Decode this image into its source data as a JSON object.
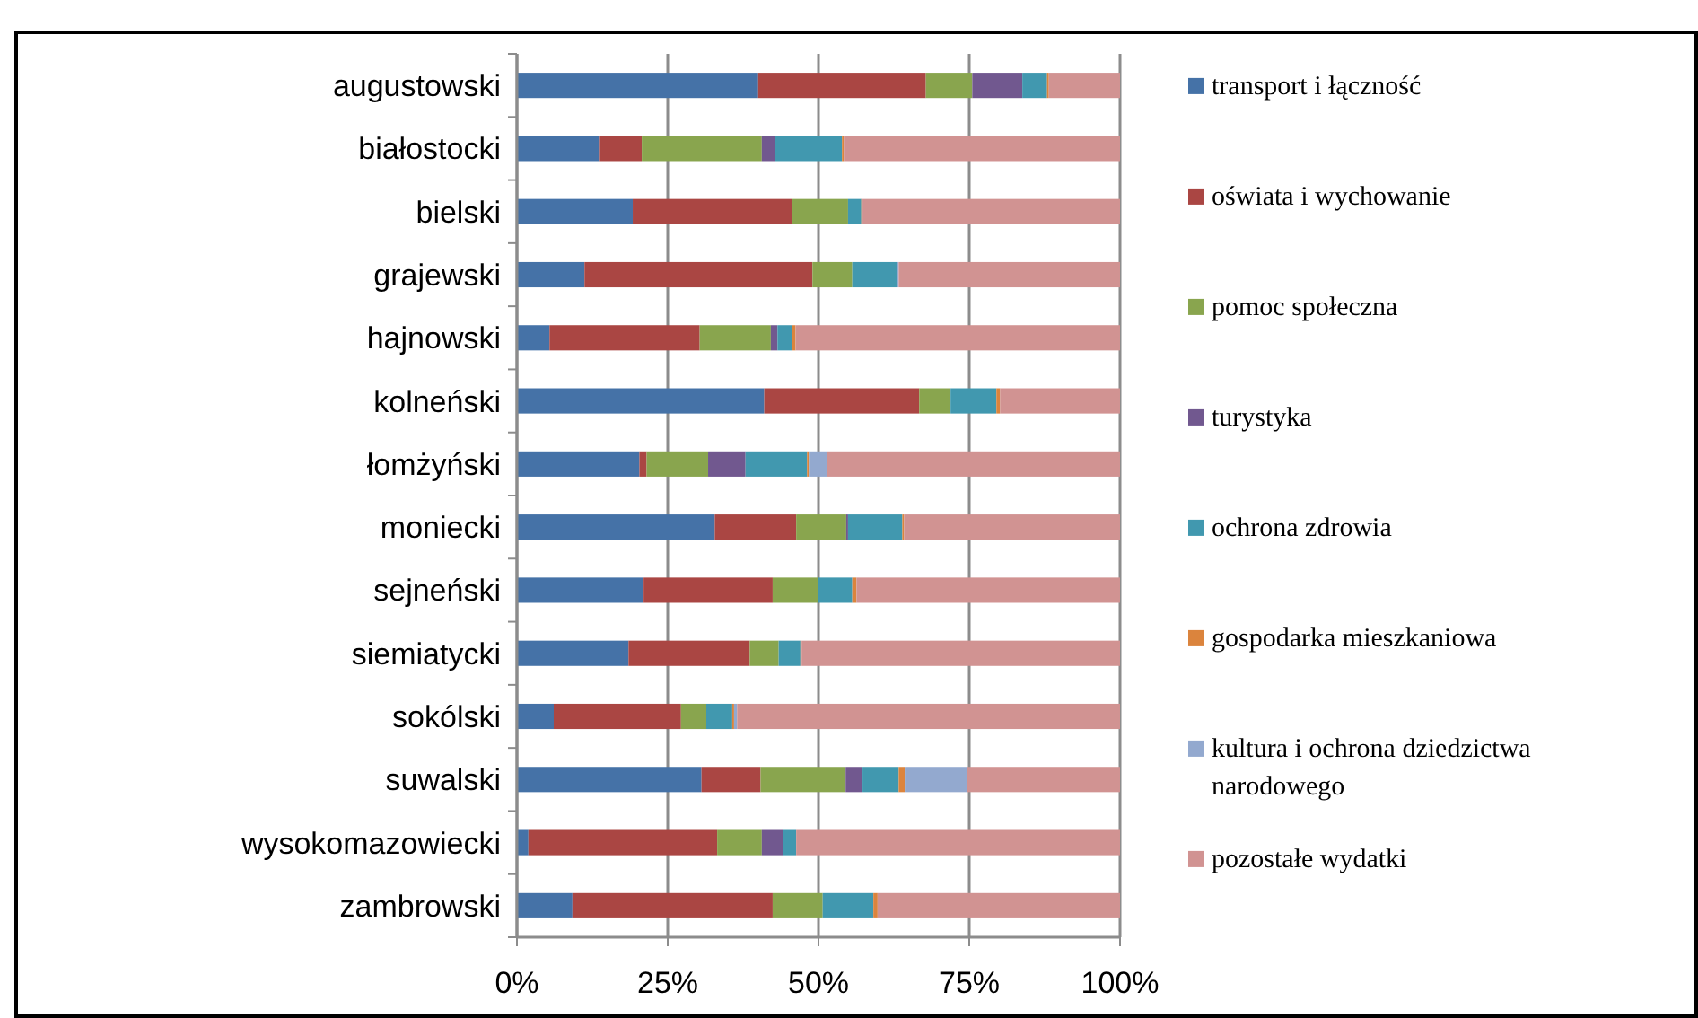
{
  "chart_data": {
    "type": "bar",
    "orientation": "horizontal",
    "stacked": true,
    "grid": "x",
    "legend": "right",
    "categories": [
      "augustowski",
      "białostocki",
      "bielski",
      "grajewski",
      "hajnowski",
      "kolneński",
      "łomżyński",
      "moniecki",
      "sejneński",
      "siemiatycki",
      "sokólski",
      "suwalski",
      "wysokomazowiecki",
      "zambrowski"
    ],
    "xlim": [
      0,
      100
    ],
    "xticks": [
      {
        "value": 0,
        "label": "0%"
      },
      {
        "value": 25,
        "label": "25%"
      },
      {
        "value": 50,
        "label": "50%"
      },
      {
        "value": 75,
        "label": "75%"
      },
      {
        "value": 100,
        "label": "100%"
      }
    ],
    "series": [
      {
        "name": "transport i łączność",
        "color": "#4572a7",
        "values": [
          40,
          13.6,
          19.2,
          11.2,
          5.4,
          41,
          20.3,
          32.8,
          21,
          18.5,
          6.1,
          30.6,
          1.9,
          9.2
        ]
      },
      {
        "name": "oświata i wychowanie",
        "color": "#aa4643",
        "values": [
          27.8,
          7.1,
          26.4,
          37.8,
          24.9,
          25.7,
          1.2,
          13.5,
          21.4,
          20.1,
          21.1,
          9.8,
          31.3,
          33.2
        ]
      },
      {
        "name": "pomoc społeczna",
        "color": "#89a54e",
        "values": [
          7.7,
          19.9,
          9.3,
          6.6,
          11.8,
          5.2,
          10.2,
          8.3,
          7.6,
          4.8,
          4.2,
          14.1,
          7.4,
          8.3
        ]
      },
      {
        "name": "turystyka",
        "color": "#71588f",
        "values": [
          8.3,
          2.2,
          0,
          0,
          1.1,
          0,
          6.2,
          0.3,
          0,
          0,
          0,
          2.8,
          3.5,
          0
        ]
      },
      {
        "name": "ochrona zdrowia",
        "color": "#4198af",
        "values": [
          4.1,
          11.1,
          2.2,
          7.4,
          2.4,
          7.6,
          10.2,
          9,
          5.6,
          3.6,
          4.3,
          6,
          2.2,
          8.4
        ]
      },
      {
        "name": "gospodarka mieszkaniowa",
        "color": "#db843d",
        "values": [
          0.3,
          0.3,
          0.2,
          0.1,
          0.6,
          0.6,
          0.3,
          0.3,
          0.7,
          0.2,
          0.3,
          1,
          0,
          0.7
        ]
      },
      {
        "name": "kultura i ochrona dziedzictwa narodowego",
        "color": "#93a9cf",
        "values": [
          0,
          0,
          0,
          0.2,
          0,
          0,
          3,
          0,
          0,
          0,
          0.5,
          10.4,
          0,
          0
        ]
      },
      {
        "name": "pozostałe wydatki",
        "color": "#d19392",
        "values": [
          11.8,
          45.8,
          42.7,
          36.7,
          53.8,
          19.9,
          48.6,
          35.8,
          43.7,
          52.8,
          63.5,
          25.3,
          53.7,
          40.2
        ]
      }
    ]
  }
}
